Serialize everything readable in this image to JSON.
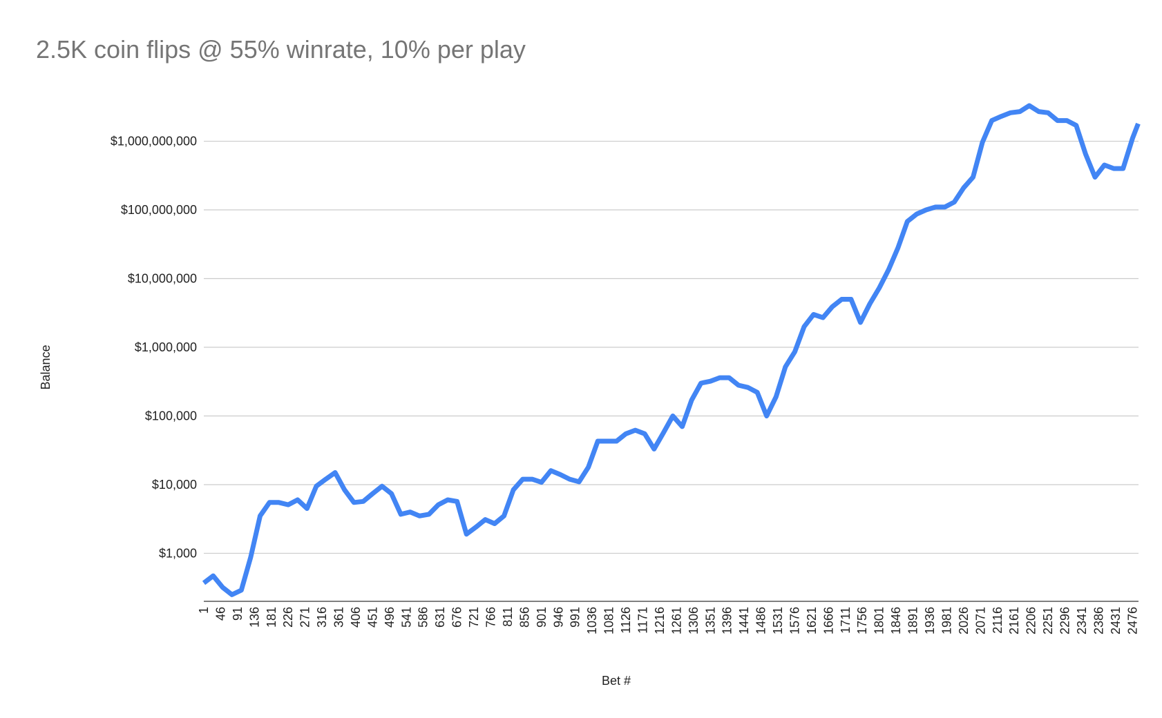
{
  "chart_data": {
    "type": "line",
    "title": "2.5K coin flips @ 55% winrate, 10% per play",
    "x_label": "Bet #",
    "y_label": "Balance",
    "y_log_scale": true,
    "grid": true,
    "x": [
      1,
      26,
      51,
      76,
      101,
      126,
      151,
      176,
      201,
      226,
      251,
      276,
      301,
      326,
      351,
      376,
      401,
      426,
      451,
      476,
      501,
      526,
      551,
      576,
      601,
      626,
      651,
      676,
      701,
      726,
      751,
      776,
      801,
      826,
      851,
      876,
      901,
      926,
      951,
      976,
      1001,
      1026,
      1051,
      1076,
      1101,
      1126,
      1151,
      1176,
      1201,
      1226,
      1251,
      1276,
      1301,
      1326,
      1351,
      1376,
      1401,
      1426,
      1451,
      1476,
      1501,
      1526,
      1551,
      1576,
      1601,
      1626,
      1651,
      1676,
      1701,
      1726,
      1751,
      1776,
      1801,
      1826,
      1851,
      1876,
      1901,
      1926,
      1951,
      1976,
      2001,
      2026,
      2051,
      2076,
      2101,
      2126,
      2151,
      2176,
      2201,
      2226,
      2251,
      2276,
      2301,
      2326,
      2351,
      2376,
      2401,
      2426,
      2451,
      2476,
      2491
    ],
    "series": [
      {
        "name": "Balance",
        "color": "#4285f4",
        "values": [
          370,
          470,
          320,
          250,
          290,
          880,
          3500,
          5500,
          5500,
          5100,
          6000,
          4500,
          9500,
          12000,
          15000,
          8400,
          5500,
          5700,
          7400,
          9500,
          7400,
          3700,
          4000,
          3500,
          3700,
          5100,
          6000,
          5700,
          1900,
          2400,
          3100,
          2700,
          3500,
          8400,
          12000,
          12000,
          10800,
          16000,
          14000,
          12000,
          11000,
          18000,
          43000,
          43000,
          43000,
          55000,
          62000,
          55000,
          33000,
          57000,
          100000,
          70000,
          170000,
          300000,
          320000,
          360000,
          360000,
          280000,
          260000,
          220000,
          100000,
          190000,
          520000,
          860000,
          2000000,
          3000000,
          2700000,
          3900000,
          5000000,
          5000000,
          2300000,
          4300000,
          7300000,
          13500000,
          28000000,
          68000000,
          87000000,
          100000000,
          110000000,
          110000000,
          130000000,
          210000000,
          300000000,
          960000000,
          2000000000,
          2300000000,
          2600000000,
          2700000000,
          3300000000,
          2700000000,
          2600000000,
          2000000000,
          2000000000,
          1700000000,
          650000000,
          300000000,
          450000000,
          400000000,
          400000000,
          1100000000,
          1800000000
        ]
      }
    ],
    "xlim": [
      1,
      2492
    ],
    "xticks": [
      1,
      46,
      91,
      136,
      181,
      226,
      271,
      316,
      361,
      406,
      451,
      496,
      541,
      586,
      631,
      676,
      721,
      766,
      811,
      856,
      901,
      946,
      991,
      1036,
      1081,
      1126,
      1171,
      1216,
      1261,
      1306,
      1351,
      1396,
      1441,
      1486,
      1531,
      1576,
      1621,
      1666,
      1711,
      1756,
      1801,
      1846,
      1891,
      1936,
      1981,
      2026,
      2071,
      2116,
      2161,
      2206,
      2251,
      2296,
      2341,
      2386,
      2431,
      2476
    ],
    "ylim": [
      200,
      5000000000
    ],
    "yticks": [
      {
        "value": 1000,
        "label": "$1,000"
      },
      {
        "value": 10000,
        "label": "$10,000"
      },
      {
        "value": 100000,
        "label": "$100,000"
      },
      {
        "value": 1000000,
        "label": "$1,000,000"
      },
      {
        "value": 10000000,
        "label": "$10,000,000"
      },
      {
        "value": 100000000,
        "label": "$100,000,000"
      },
      {
        "value": 1000000000,
        "label": "$1,000,000,000"
      }
    ]
  }
}
